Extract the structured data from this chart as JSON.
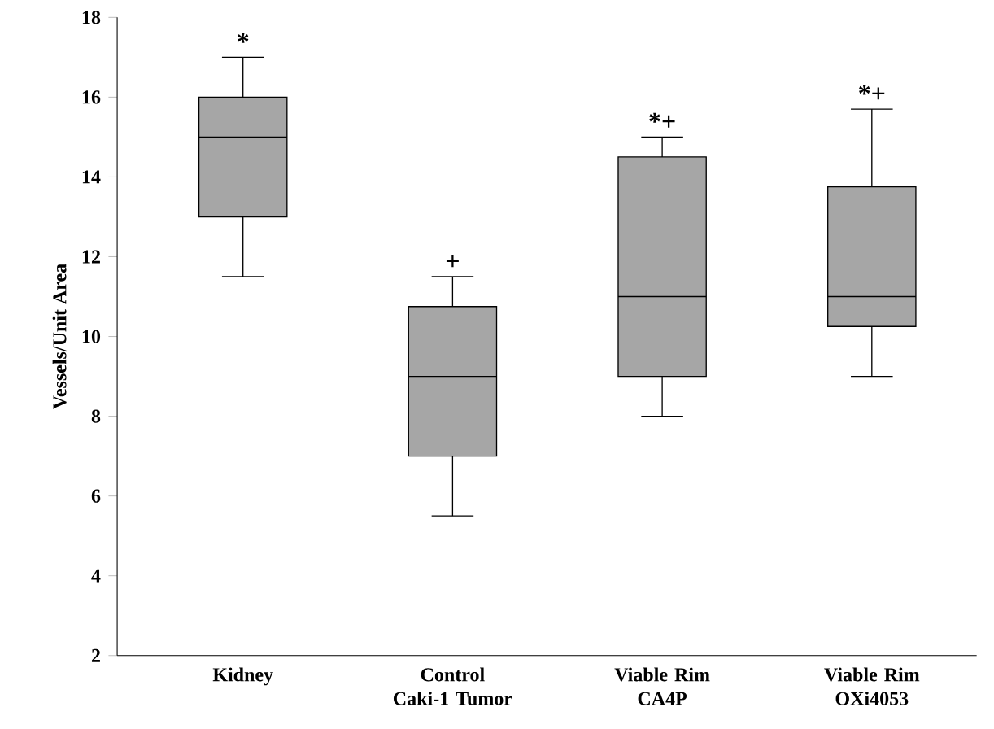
{
  "chart_data": {
    "type": "box",
    "ylabel": "Vessels/Unit Area",
    "categories": [
      "Kidney",
      "Control Caki-1 Tumor",
      "Viable Rim CA4P",
      "Viable Rim OXi4053"
    ],
    "boxes": [
      {
        "low": 11.5,
        "q1": 13,
        "median": 15,
        "q3": 16,
        "high": 17
      },
      {
        "low": 5.5,
        "q1": 7,
        "median": 9,
        "q3": 10.75,
        "high": 11.5
      },
      {
        "low": 8,
        "q1": 9,
        "median": 11,
        "q3": 14.5,
        "high": 15
      },
      {
        "low": 9,
        "q1": 10.25,
        "median": 11,
        "q3": 13.75,
        "high": 15.7
      }
    ],
    "color": "#a6a6a6",
    "ylim": [
      2,
      18
    ],
    "yticks": [
      2,
      4,
      6,
      8,
      10,
      12,
      14,
      16,
      18
    ],
    "annotations": [
      "*",
      "+",
      "*+",
      "*+"
    ]
  }
}
